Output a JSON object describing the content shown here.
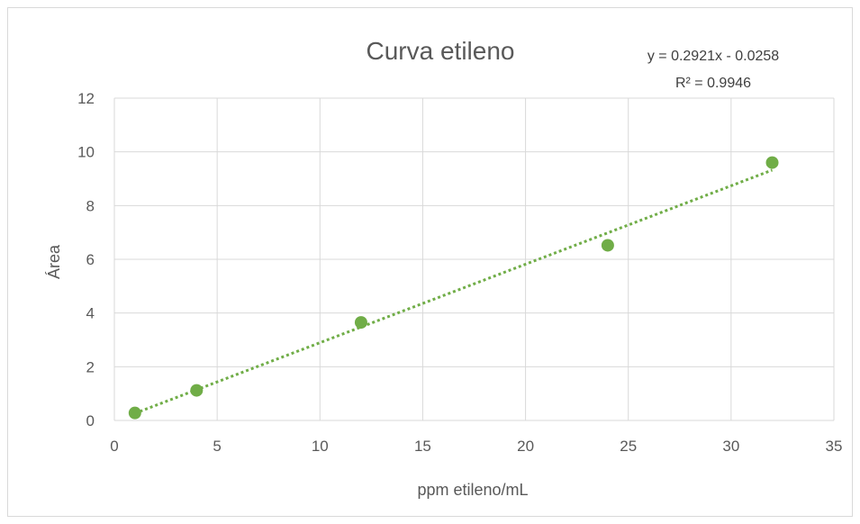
{
  "chart_data": {
    "type": "scatter",
    "title": "Curva etileno",
    "xlabel": "ppm etileno/mL",
    "ylabel": "Área",
    "xlim": [
      0,
      35
    ],
    "ylim": [
      0,
      12
    ],
    "xticks": [
      0,
      5,
      10,
      15,
      20,
      25,
      30,
      35
    ],
    "yticks": [
      0,
      2,
      4,
      6,
      8,
      10,
      12
    ],
    "grid": true,
    "series": [
      {
        "x": [
          1,
          4,
          12,
          24,
          32
        ],
        "y": [
          0.28,
          1.12,
          3.65,
          6.52,
          9.6
        ],
        "color": "#70ad47"
      }
    ],
    "trendline": {
      "type": "linear",
      "slope": 0.2921,
      "intercept": -0.0258,
      "x_range": [
        1,
        32
      ],
      "style": "dotted",
      "color": "#70ad47",
      "equation_label": "y = 0.2921x - 0.0258",
      "r2_label": "R² = 0.9946"
    }
  }
}
